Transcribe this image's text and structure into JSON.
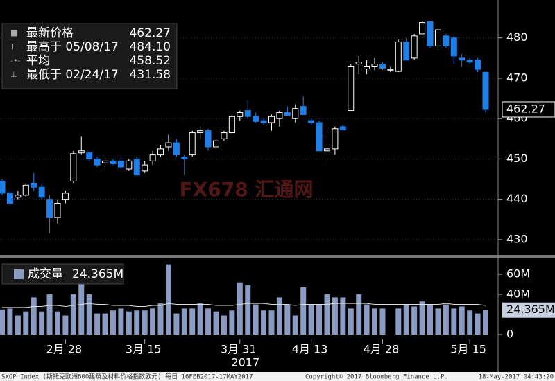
{
  "chart_data": [
    {
      "type": "candlestick",
      "categories": [
        null,
        null,
        null,
        null,
        null,
        null,
        null,
        null,
        "2月 28",
        null,
        null,
        null,
        null,
        null,
        null,
        null,
        null,
        null,
        "3月 15",
        null,
        null,
        null,
        null,
        null,
        null,
        null,
        null,
        null,
        null,
        null,
        "3月 31",
        null,
        null,
        null,
        null,
        null,
        null,
        null,
        null,
        "4月 13",
        null,
        null,
        null,
        null,
        null,
        null,
        null,
        null,
        "4月 28",
        null,
        null,
        null,
        null,
        null,
        null,
        null,
        null,
        null,
        null,
        "5月 15",
        null,
        null
      ],
      "year_label": "2017",
      "open": [
        444.5,
        441.5,
        440.5,
        441,
        444,
        443,
        440,
        435.5,
        440,
        444.5,
        451.5,
        451.5,
        450,
        449,
        449.5,
        449.5,
        447.5,
        450,
        447,
        449.5,
        451,
        453,
        454,
        450.5,
        451,
        456.5,
        457,
        453,
        455,
        456.5,
        460.5,
        462,
        460.5,
        459.5,
        459,
        460,
        461.5,
        460,
        463,
        459.5,
        459,
        452,
        452.5,
        458,
        462,
        473.5,
        472.3,
        473,
        473.5,
        472,
        471.7,
        479,
        475,
        481,
        484,
        478,
        480.5,
        480,
        475,
        474.5,
        474.5,
        471.5
      ],
      "high": [
        445,
        442,
        442,
        444,
        446.5,
        444,
        441,
        440,
        442,
        452,
        455.5,
        452,
        450.5,
        450.5,
        450,
        450.5,
        450,
        450.5,
        449.5,
        452,
        453.5,
        456,
        455,
        451,
        457,
        458,
        457.5,
        455,
        457,
        461,
        462,
        464.5,
        461.5,
        460,
        461,
        462,
        463,
        463.5,
        465.5,
        460,
        459.5,
        455.5,
        458,
        458.5,
        473.5,
        475.5,
        474.5,
        475,
        474,
        473,
        479.5,
        480,
        481,
        484.1,
        484.1,
        482.5,
        481,
        480.5,
        476,
        475,
        475,
        471.5
      ],
      "low": [
        441,
        438.5,
        440,
        440.5,
        442,
        440,
        431.58,
        434,
        439,
        444,
        451,
        449.5,
        448,
        448,
        448.5,
        447.5,
        447,
        446,
        446.5,
        448.5,
        450.5,
        452,
        450.5,
        446,
        450.5,
        455,
        452,
        452.5,
        454.5,
        456,
        459.5,
        460,
        459,
        458.5,
        457,
        458,
        461,
        459,
        461,
        458.5,
        452,
        449.5,
        451,
        457,
        462,
        471,
        471,
        472,
        472,
        471.5,
        471.5,
        474.5,
        474.5,
        480,
        477.5,
        477.5,
        477.5,
        473.5,
        473,
        473.5,
        471.5,
        461.5
      ],
      "close": [
        441.5,
        439,
        441,
        443.5,
        443,
        440.5,
        435.5,
        439,
        441.5,
        451.3,
        452,
        450,
        448.5,
        449.5,
        448.8,
        448,
        449.5,
        446,
        448.5,
        451,
        452.5,
        454,
        451,
        450,
        456.5,
        457,
        453,
        454.5,
        456.5,
        460.5,
        461.5,
        460.5,
        459.3,
        459,
        460.5,
        461.5,
        460.8,
        462.5,
        461,
        459,
        452,
        452.5,
        457.5,
        457.2,
        473,
        474,
        473,
        473.5,
        472.5,
        472.2,
        479,
        474.5,
        480.5,
        483.8,
        478,
        482,
        478,
        475.5,
        474.5,
        474,
        472.2,
        462.27
      ],
      "up_color": "#ffffff",
      "down_color": "#1f7fe8",
      "ylim": [
        426.2,
        489.4
      ],
      "yticks": [
        430,
        440,
        450,
        460,
        470,
        480
      ],
      "grid": true,
      "legend": [
        {
          "text": "最新价格"
        },
        {
          "text": "最高于 05/08/17",
          "value_label": "484.10"
        },
        {
          "text": "平均",
          "value": 458.52
        },
        {
          "text": "最低于 02/24/17"
        }
      ]
    },
    {
      "type": "bar",
      "title": "成交量",
      "values": [
        25,
        26,
        19,
        23,
        37,
        23,
        40,
        23,
        19,
        40,
        52,
        40,
        21,
        21,
        24,
        26,
        23,
        24,
        24,
        26,
        31,
        70,
        21,
        26,
        26,
        31,
        26,
        23,
        19,
        24,
        52,
        49,
        30,
        24,
        24,
        37,
        30,
        19,
        47,
        30,
        30,
        40,
        37,
        37,
        26,
        40,
        30,
        26,
        26,
        null,
        26,
        30,
        28,
        33,
        30,
        26,
        30,
        26,
        28,
        24,
        21,
        24.365
      ],
      "last_value_label": "24.365M",
      "average": [
        27,
        27,
        27,
        27,
        28,
        28,
        29,
        29,
        28,
        29,
        30,
        31,
        30,
        30,
        29,
        29,
        29,
        28,
        28,
        29,
        29,
        31,
        30,
        30,
        30,
        30,
        30,
        29,
        29,
        29,
        30,
        31,
        31,
        31,
        30,
        30,
        30,
        29,
        30,
        30,
        30,
        30,
        31,
        31,
        31,
        31,
        31,
        30,
        30,
        30,
        30,
        30,
        30,
        30,
        30,
        30,
        31,
        30,
        30,
        30,
        30,
        29
      ],
      "color": "#8a9cc2",
      "ylim": [
        -4.8,
        76.6
      ],
      "yticks": [
        0,
        {
          "value": 40,
          "label": "40M"
        },
        {
          "value": 60,
          "label": "60M"
        }
      ]
    }
  ],
  "footer": {
    "left": "SXOP Index (斯托克欧洲600建筑及材料价格指数欧元)  每日 16FEB2017-17MAY2017",
    "center": "Copyright© 2017 Bloomberg Finance L.P.",
    "right": "18-May-2017 04:43:20"
  },
  "watermark": "FX678 汇通网"
}
